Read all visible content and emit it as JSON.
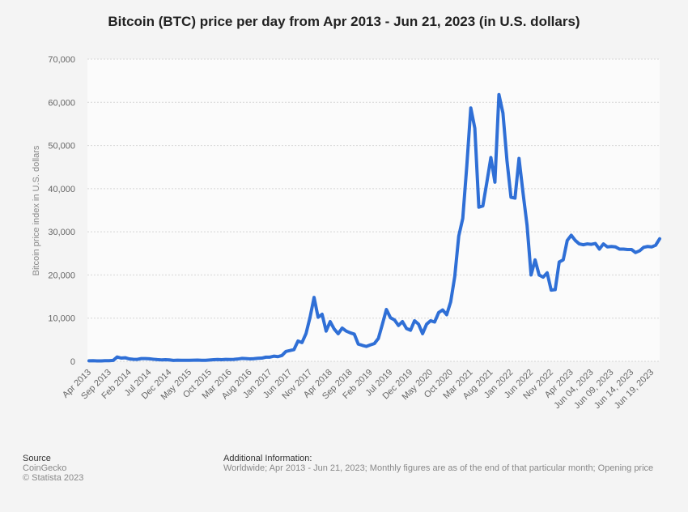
{
  "chart_data": {
    "type": "line",
    "title": "Bitcoin (BTC) price per day from Apr 2013 - Jun 21, 2023 (in U.S. dollars)",
    "y_label": "Bitcoin price index in U.S. dollars",
    "color": "#2f6fd6",
    "grid": true,
    "categories": [
      "Apr 2013",
      null,
      null,
      null,
      null,
      "Sep 2013",
      null,
      null,
      null,
      null,
      "Feb 2014",
      null,
      null,
      null,
      null,
      "Jul 2014",
      null,
      null,
      null,
      null,
      "Dec 2014",
      null,
      null,
      null,
      null,
      "May 2015",
      null,
      null,
      null,
      null,
      "Oct 2015",
      null,
      null,
      null,
      null,
      "Mar 2016",
      null,
      null,
      null,
      null,
      "Aug 2016",
      null,
      null,
      null,
      null,
      "Jan 2017",
      null,
      null,
      null,
      null,
      "Jun 2017",
      null,
      null,
      null,
      null,
      "Nov 2017",
      null,
      null,
      null,
      null,
      "Apr 2018",
      null,
      null,
      null,
      null,
      "Sep 2018",
      null,
      null,
      null,
      null,
      "Feb 2019",
      null,
      null,
      null,
      null,
      "Jul 2019",
      null,
      null,
      null,
      null,
      "Dec 2019",
      null,
      null,
      null,
      null,
      "May 2020",
      null,
      null,
      null,
      null,
      "Oct 2020",
      null,
      null,
      null,
      null,
      "Mar 2021",
      null,
      null,
      null,
      null,
      "Aug 2021",
      null,
      null,
      null,
      null,
      "Jan 2022",
      null,
      null,
      null,
      null,
      "Jun 2022",
      null,
      null,
      null,
      null,
      "Nov 2022",
      null,
      null,
      null,
      null,
      "Apr 2023",
      null,
      null,
      null,
      null,
      "Jun 04, 2023",
      null,
      null,
      null,
      null,
      "Jun 09, 2023",
      null,
      null,
      null,
      null,
      "Jun 14, 2023",
      null,
      null,
      null,
      null,
      "Jun 19, 2023",
      null,
      null
    ],
    "values": [
      117,
      129,
      97,
      106,
      141,
      133,
      203,
      1000,
      750,
      830,
      560,
      460,
      450,
      630,
      640,
      590,
      480,
      390,
      340,
      380,
      320,
      220,
      255,
      245,
      235,
      230,
      260,
      285,
      230,
      235,
      315,
      375,
      430,
      370,
      435,
      415,
      450,
      530,
      670,
      625,
      575,
      610,
      700,
      745,
      960,
      970,
      1190,
      1080,
      1350,
      2290,
      2490,
      2720,
      4700,
      4340,
      6440,
      10200,
      14800,
      10200,
      10900,
      7000,
      9200,
      7500,
      6400,
      7700,
      7000,
      6600,
      6300,
      4000,
      3700,
      3450,
      3800,
      4100,
      5300,
      8600,
      12000,
      10100,
      9600,
      8300,
      9200,
      7600,
      7200,
      9400,
      8600,
      6400,
      8600,
      9400,
      9100,
      11300,
      11900,
      10800,
      13800,
      19600,
      29000,
      33100,
      45200,
      58700,
      54000,
      35700,
      36000,
      41500,
      47200,
      41500,
      61800,
      57500,
      46500,
      38000,
      37800,
      47000,
      39000,
      31500,
      20000,
      23500,
      20000,
      19500,
      20500,
      16500,
      16600,
      23000,
      23500,
      28000,
      29200,
      28000,
      27200,
      27000,
      27200,
      27100,
      27300,
      26000,
      27200,
      26500,
      26600,
      26500,
      26000,
      26000,
      25900,
      25900,
      25200,
      25600,
      26400,
      26600,
      26500,
      26900,
      28400
    ],
    "ylim": [
      0,
      70000
    ],
    "yticks": [
      0,
      {
        "value": 10000,
        "label": "10,000"
      },
      {
        "value": 20000,
        "label": "20,000"
      },
      {
        "value": 30000,
        "label": "30,000"
      },
      {
        "value": 40000,
        "label": "40,000"
      },
      {
        "value": 50000,
        "label": "50,000"
      },
      {
        "value": 60000,
        "label": "60,000"
      },
      {
        "value": 70000,
        "label": "70,000"
      }
    ]
  },
  "footer": {
    "source_title": "Source",
    "source": "CoinGecko",
    "copyright": "© Statista 2023",
    "info_title": "Additional Information:",
    "info": "Worldwide; Apr 2013 - Jun 21, 2023; Monthly figures are as of the end of that particular month; Opening price"
  }
}
